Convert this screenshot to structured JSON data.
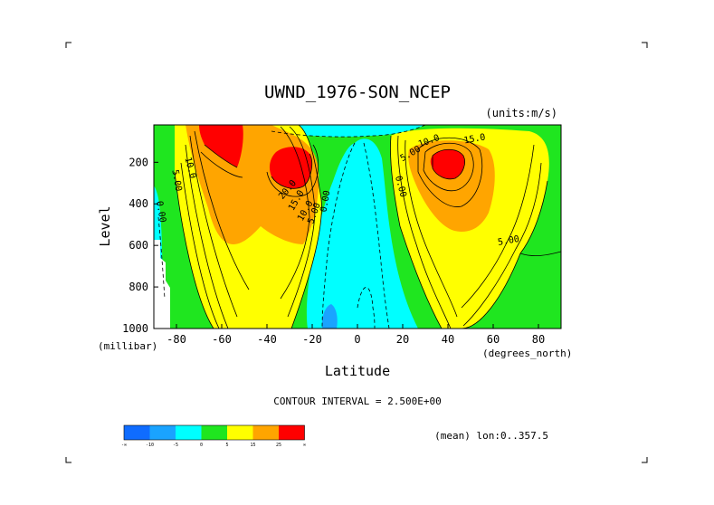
{
  "chart_data": {
    "type": "heatmap",
    "title": "UWND_1976-SON_NCEP",
    "units": "(units:m/s)",
    "xlabel": "Latitude",
    "xunits": "(degrees_north)",
    "ylabel": "Level",
    "yunits": "(millibar)",
    "xlim": [
      -90,
      90
    ],
    "ylim": [
      1000,
      20
    ],
    "x_ticks": [
      -80,
      -60,
      -40,
      -20,
      0,
      20,
      40,
      60,
      80
    ],
    "x_tick_labels": [
      "-80",
      "-60",
      "-40",
      "-20",
      "0",
      "20",
      "40",
      "60",
      "80"
    ],
    "y_ticks": [
      200,
      400,
      600,
      800,
      1000
    ],
    "y_tick_labels": [
      "200",
      "400",
      "600",
      "800",
      "1000"
    ],
    "contour_interval_text": "CONTOUR INTERVAL = 2.500E+00",
    "mean_text": "(mean) lon:0..357.5",
    "colorbar": {
      "levels": [
        "-∞",
        "-10",
        "-5",
        "0",
        "5",
        "15",
        "25",
        "∞"
      ],
      "colors": [
        "#0f6cff",
        "#1aa3ff",
        "#00ffff",
        "#1fe61f",
        "#ffff00",
        "#ffa500",
        "#ff0000"
      ]
    },
    "contour_labels": [
      {
        "text": "10.0",
        "lat": -75,
        "level": 230,
        "rot": 75
      },
      {
        "text": "5.00",
        "lat": -81,
        "level": 290,
        "rot": 80
      },
      {
        "text": "0.00",
        "lat": -88,
        "level": 440,
        "rot": 80
      },
      {
        "text": "20.0",
        "lat": -30,
        "level": 340,
        "rot": -50
      },
      {
        "text": "15.0",
        "lat": -26,
        "level": 390,
        "rot": -60
      },
      {
        "text": "10.0",
        "lat": -22,
        "level": 440,
        "rot": -60
      },
      {
        "text": "5.00",
        "lat": -18,
        "level": 450,
        "rot": -70
      },
      {
        "text": "0.00",
        "lat": -13,
        "level": 390,
        "rot": -80
      },
      {
        "text": "0.00",
        "lat": 18,
        "level": 320,
        "rot": 75
      },
      {
        "text": "5.00",
        "lat": 24,
        "level": 170,
        "rot": -30
      },
      {
        "text": "10.0",
        "lat": 32,
        "level": 110,
        "rot": -20
      },
      {
        "text": "15.0",
        "lat": 52,
        "level": 100,
        "rot": -10
      },
      {
        "text": "5.00",
        "lat": 67,
        "level": 590,
        "rot": -10
      }
    ],
    "jets": [
      {
        "name_lat": -60,
        "peak_level": 100,
        "max": 30
      },
      {
        "name_lat": -28,
        "peak_level": 200,
        "max": 27
      },
      {
        "name_lat": 41,
        "peak_level": 200,
        "max": 30
      }
    ]
  }
}
